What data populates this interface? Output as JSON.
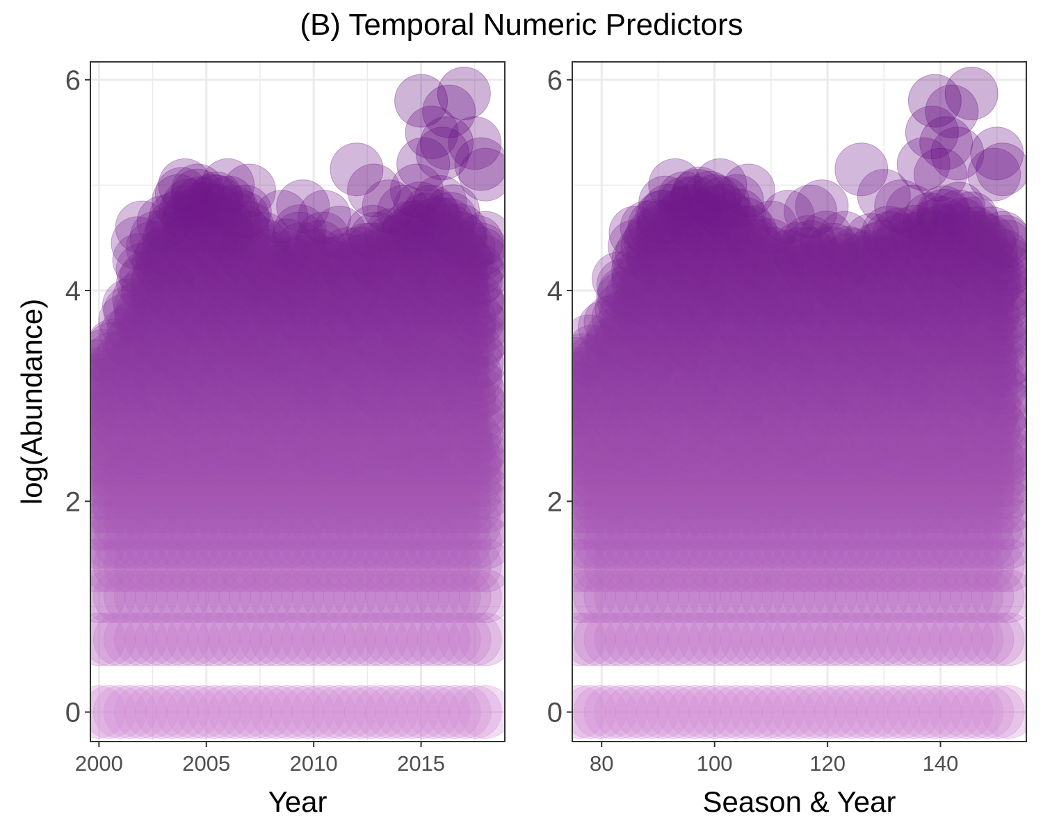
{
  "figure": {
    "title": "(B) Temporal Numeric Predictors"
  },
  "colors": {
    "low": "#d08ad4",
    "high": "#5a0079",
    "grid": "#ebebeb",
    "panel_border": "#333333",
    "tick_label": "#4d4d4d"
  },
  "chart_data": [
    {
      "type": "scatter",
      "panel": "left",
      "title": "",
      "xlabel": "Year",
      "ylabel": "log(Abundance)",
      "xlim": [
        1999.6,
        2018.9
      ],
      "ylim": [
        -0.28,
        6.17
      ],
      "x_ticks": [
        2000,
        2005,
        2010,
        2015
      ],
      "x_tick_labels": [
        "2000",
        "2005",
        "2010",
        "2015"
      ],
      "y_ticks": [
        0,
        2,
        4,
        6
      ],
      "y_tick_labels": [
        "0",
        "2",
        "4",
        "6"
      ],
      "grid": true,
      "point_alpha": 0.3,
      "color_scale": "log(Abundance) light orchid to dark purple",
      "x_range": [
        2000,
        2018
      ],
      "level_y": [
        0,
        0.69,
        1.1,
        1.39,
        1.61,
        1.79,
        1.95,
        2.08,
        2.2,
        2.3,
        2.4
      ],
      "cloud_top": [
        [
          2000,
          3.4
        ],
        [
          2001,
          3.6
        ],
        [
          2002,
          4.3
        ],
        [
          2003,
          4.6
        ],
        [
          2004,
          4.9
        ],
        [
          2005,
          4.9
        ],
        [
          2006,
          4.9
        ],
        [
          2007,
          4.7
        ],
        [
          2008,
          4.3
        ],
        [
          2009,
          4.5
        ],
        [
          2010,
          4.6
        ],
        [
          2011,
          4.3
        ],
        [
          2012,
          4.4
        ],
        [
          2013,
          4.6
        ],
        [
          2014,
          4.6
        ],
        [
          2015,
          4.8
        ],
        [
          2016,
          4.9
        ],
        [
          2017,
          4.6
        ],
        [
          2018,
          4.5
        ]
      ],
      "outliers": [
        [
          2015.0,
          5.8
        ],
        [
          2016.3,
          5.7
        ],
        [
          2017.0,
          5.87
        ],
        [
          2015.5,
          5.5
        ],
        [
          2016.2,
          5.4
        ],
        [
          2017.5,
          5.4
        ],
        [
          2015.1,
          5.2
        ],
        [
          2016.0,
          5.3
        ],
        [
          2017.8,
          5.2
        ],
        [
          2018.0,
          5.1
        ],
        [
          2012.0,
          5.15
        ],
        [
          2012.8,
          4.95
        ],
        [
          2013.5,
          4.8
        ],
        [
          2014.2,
          4.75
        ],
        [
          2004.0,
          5.0
        ],
        [
          2004.6,
          4.95
        ],
        [
          2006.0,
          5.0
        ],
        [
          2007.0,
          4.95
        ],
        [
          2003.0,
          4.65
        ],
        [
          2002.0,
          4.6
        ],
        [
          2009.5,
          4.8
        ],
        [
          2010.5,
          4.7
        ],
        [
          2008.5,
          4.7
        ],
        [
          2005.3,
          4.85
        ],
        [
          2001.8,
          4.45
        ],
        [
          2003.7,
          4.85
        ],
        [
          2006.8,
          4.75
        ],
        [
          2011.2,
          4.55
        ],
        [
          2014.8,
          4.95
        ],
        [
          2016.8,
          4.5
        ],
        [
          2018.0,
          4.5
        ]
      ]
    },
    {
      "type": "scatter",
      "panel": "right",
      "title": "",
      "xlabel": "Season & Year",
      "ylabel": "",
      "xlim": [
        74.8,
        155.2
      ],
      "ylim": [
        -0.28,
        6.17
      ],
      "x_ticks": [
        80,
        100,
        120,
        140
      ],
      "x_tick_labels": [
        "80",
        "100",
        "120",
        "140"
      ],
      "y_ticks": [
        0,
        2,
        4,
        6
      ],
      "y_tick_labels": [
        "0",
        "2",
        "4",
        "6"
      ],
      "grid": true,
      "point_alpha": 0.3,
      "color_scale": "log(Abundance) light orchid to dark purple",
      "x_range": [
        76,
        152
      ],
      "level_y": [
        0,
        0.69,
        1.1,
        1.39,
        1.61,
        1.79,
        1.95,
        2.08,
        2.2,
        2.3,
        2.4
      ],
      "cloud_top": [
        [
          76,
          3.4
        ],
        [
          80,
          3.6
        ],
        [
          84,
          4.2
        ],
        [
          88,
          4.6
        ],
        [
          92,
          4.9
        ],
        [
          96,
          4.9
        ],
        [
          100,
          4.9
        ],
        [
          104,
          4.8
        ],
        [
          108,
          4.5
        ],
        [
          112,
          4.4
        ],
        [
          116,
          4.5
        ],
        [
          120,
          4.5
        ],
        [
          124,
          4.3
        ],
        [
          128,
          4.5
        ],
        [
          132,
          4.6
        ],
        [
          136,
          4.6
        ],
        [
          140,
          4.8
        ],
        [
          144,
          4.8
        ],
        [
          148,
          4.6
        ],
        [
          152,
          4.5
        ]
      ],
      "outliers": [
        [
          139,
          5.8
        ],
        [
          145.5,
          5.87
        ],
        [
          142,
          5.7
        ],
        [
          138.5,
          5.5
        ],
        [
          141,
          5.4
        ],
        [
          143,
          5.3
        ],
        [
          150,
          5.3
        ],
        [
          151,
          5.15
        ],
        [
          149.5,
          5.1
        ],
        [
          126,
          5.15
        ],
        [
          130,
          4.9
        ],
        [
          133,
          4.8
        ],
        [
          93,
          5.0
        ],
        [
          101,
          5.0
        ],
        [
          106,
          4.95
        ],
        [
          97,
          4.9
        ],
        [
          88,
          4.6
        ],
        [
          86,
          4.55
        ],
        [
          117,
          4.75
        ],
        [
          119,
          4.8
        ],
        [
          113,
          4.7
        ],
        [
          104,
          4.85
        ],
        [
          135,
          4.75
        ],
        [
          147,
          4.5
        ],
        [
          151,
          4.5
        ],
        [
          91,
          4.7
        ],
        [
          110,
          4.6
        ],
        [
          123,
          4.5
        ],
        [
          137,
          5.2
        ],
        [
          140,
          5.1
        ]
      ]
    }
  ]
}
